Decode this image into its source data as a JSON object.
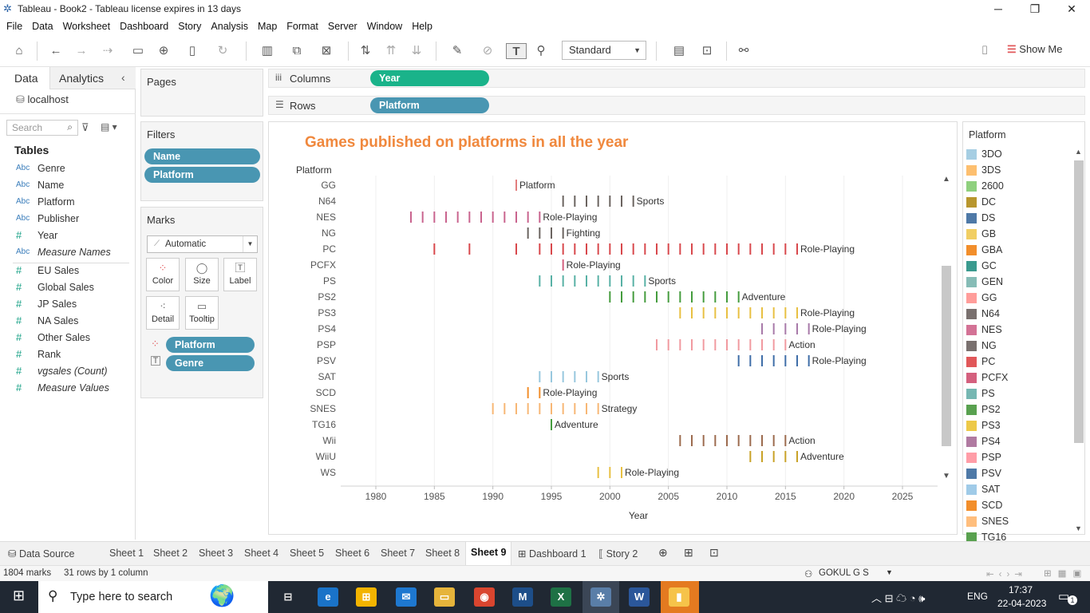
{
  "window": {
    "title": "Tableau - Book2 - Tableau license expires in 13 days",
    "minimize": "─",
    "restore": "❐",
    "close": "✕"
  },
  "menu": [
    "File",
    "Data",
    "Worksheet",
    "Dashboard",
    "Story",
    "Analysis",
    "Map",
    "Format",
    "Server",
    "Window",
    "Help"
  ],
  "toolbar": {
    "fit_select": "Standard",
    "show_me": "Show Me"
  },
  "data_pane": {
    "tab_data": "Data",
    "tab_analytics": "Analytics",
    "datasource": "localhost",
    "search_placeholder": "Search",
    "tables_header": "Tables",
    "dimensions": [
      {
        "type": "Abc",
        "name": "Genre"
      },
      {
        "type": "Abc",
        "name": "Name"
      },
      {
        "type": "Abc",
        "name": "Platform"
      },
      {
        "type": "Abc",
        "name": "Publisher"
      },
      {
        "type": "#",
        "name": "Year"
      },
      {
        "type": "Abc",
        "name": "Measure Names",
        "italic": true
      }
    ],
    "measures": [
      {
        "type": "#",
        "name": "EU Sales"
      },
      {
        "type": "#",
        "name": "Global Sales"
      },
      {
        "type": "#",
        "name": "JP Sales"
      },
      {
        "type": "#",
        "name": "NA Sales"
      },
      {
        "type": "#",
        "name": "Other Sales"
      },
      {
        "type": "#",
        "name": "Rank"
      },
      {
        "type": "#",
        "name": "vgsales (Count)",
        "italic": true
      },
      {
        "type": "#",
        "name": "Measure Values",
        "italic": true
      }
    ]
  },
  "pages": {
    "title": "Pages"
  },
  "filters": {
    "title": "Filters",
    "items": [
      "Name",
      "Platform"
    ]
  },
  "marks": {
    "title": "Marks",
    "type": "Automatic",
    "buttons": [
      "Color",
      "Size",
      "Label",
      "Detail",
      "Tooltip"
    ],
    "pills": [
      "Platform",
      "Genre"
    ]
  },
  "shelves": {
    "columns_label": "Columns",
    "columns_pill": "Year",
    "rows_label": "Rows",
    "rows_pill": "Platform"
  },
  "chart_data": {
    "type": "scatter",
    "title": "Games published on platforms in all the year",
    "xlabel": "Year",
    "ylabel": "Platform",
    "xlim": [
      1977,
      2028
    ],
    "x_ticks": [
      1980,
      1985,
      1990,
      1995,
      2000,
      2005,
      2010,
      2015,
      2020,
      2025
    ],
    "series": [
      {
        "name": "GG",
        "years": [
          1992
        ],
        "label": "Platform",
        "color": "#e27e7e"
      },
      {
        "name": "N64",
        "years": [
          1996,
          1997,
          1998,
          1999,
          2000,
          2001,
          2002
        ],
        "label": "Sports",
        "color": "#6b6460"
      },
      {
        "name": "NES",
        "years": [
          1983,
          1984,
          1985,
          1986,
          1987,
          1988,
          1989,
          1990,
          1991,
          1992,
          1993,
          1994
        ],
        "label": "Role-Playing",
        "color": "#c9648e"
      },
      {
        "name": "NG",
        "years": [
          1993,
          1994,
          1995,
          1996
        ],
        "label": "Fighting",
        "color": "#6b6460"
      },
      {
        "name": "PC",
        "years": [
          1985,
          1988,
          1992,
          1994,
          1995,
          1996,
          1997,
          1998,
          1999,
          2000,
          2001,
          2002,
          2003,
          2004,
          2005,
          2006,
          2007,
          2008,
          2009,
          2010,
          2011,
          2012,
          2013,
          2014,
          2015,
          2016
        ],
        "label": "Role-Playing",
        "color": "#d8484c"
      },
      {
        "name": "PCFX",
        "years": [
          1996
        ],
        "label": "Role-Playing",
        "color": "#d4607e"
      },
      {
        "name": "PS",
        "years": [
          1994,
          1995,
          1996,
          1997,
          1998,
          1999,
          2000,
          2001,
          2002,
          2003
        ],
        "label": "Sports",
        "color": "#58b1a5"
      },
      {
        "name": "PS2",
        "years": [
          2000,
          2001,
          2002,
          2003,
          2004,
          2005,
          2006,
          2007,
          2008,
          2009,
          2010,
          2011
        ],
        "label": "Adventure",
        "color": "#459c3e"
      },
      {
        "name": "PS3",
        "years": [
          2006,
          2007,
          2008,
          2009,
          2010,
          2011,
          2012,
          2013,
          2014,
          2015,
          2016
        ],
        "label": "Role-Playing",
        "color": "#e8c042"
      },
      {
        "name": "PS4",
        "years": [
          2013,
          2014,
          2015,
          2016,
          2017
        ],
        "label": "Role-Playing",
        "color": "#a87aa9"
      },
      {
        "name": "PSP",
        "years": [
          2004,
          2005,
          2006,
          2007,
          2008,
          2009,
          2010,
          2011,
          2012,
          2013,
          2014,
          2015
        ],
        "label": "Action",
        "color": "#f19aa0"
      },
      {
        "name": "PSV",
        "years": [
          2011,
          2012,
          2013,
          2014,
          2015,
          2016,
          2017
        ],
        "label": "Role-Playing",
        "color": "#3f6ea8"
      },
      {
        "name": "SAT",
        "years": [
          1994,
          1995,
          1996,
          1997,
          1998,
          1999
        ],
        "label": "Sports",
        "color": "#98c8de"
      },
      {
        "name": "SCD",
        "years": [
          1993,
          1994
        ],
        "label": "Role-Playing",
        "color": "#f28e2b"
      },
      {
        "name": "SNES",
        "years": [
          1990,
          1991,
          1992,
          1993,
          1994,
          1995,
          1996,
          1997,
          1998,
          1999
        ],
        "label": "Strategy",
        "color": "#f7b775"
      },
      {
        "name": "TG16",
        "years": [
          1995
        ],
        "label": "Adventure",
        "color": "#459c3e"
      },
      {
        "name": "Wii",
        "years": [
          2006,
          2007,
          2008,
          2009,
          2010,
          2011,
          2012,
          2013,
          2014,
          2015
        ],
        "label": "Action",
        "color": "#9c6b4e"
      },
      {
        "name": "WiiU",
        "years": [
          2012,
          2013,
          2014,
          2015,
          2016
        ],
        "label": "Adventure",
        "color": "#c9a227"
      },
      {
        "name": "WS",
        "years": [
          1999,
          2000,
          2001
        ],
        "label": "Role-Playing",
        "color": "#e8c042"
      }
    ]
  },
  "legend": {
    "title": "Platform",
    "items": [
      {
        "name": "3DO",
        "color": "#a6cee3"
      },
      {
        "name": "3DS",
        "color": "#fdbf6f"
      },
      {
        "name": "2600",
        "color": "#8fd07e"
      },
      {
        "name": "DC",
        "color": "#b8962e"
      },
      {
        "name": "DS",
        "color": "#4e79a7"
      },
      {
        "name": "GB",
        "color": "#f1ce63"
      },
      {
        "name": "GBA",
        "color": "#f28e2b"
      },
      {
        "name": "GC",
        "color": "#3a9a8e"
      },
      {
        "name": "GEN",
        "color": "#86bcb6"
      },
      {
        "name": "GG",
        "color": "#ff9d9a"
      },
      {
        "name": "N64",
        "color": "#79706e"
      },
      {
        "name": "NES",
        "color": "#d37295"
      },
      {
        "name": "NG",
        "color": "#79706e"
      },
      {
        "name": "PC",
        "color": "#e15759"
      },
      {
        "name": "PCFX",
        "color": "#d4607e"
      },
      {
        "name": "PS",
        "color": "#76b7b2"
      },
      {
        "name": "PS2",
        "color": "#59a14f"
      },
      {
        "name": "PS3",
        "color": "#edc948"
      },
      {
        "name": "PS4",
        "color": "#b07aa1"
      },
      {
        "name": "PSP",
        "color": "#ff9da7"
      },
      {
        "name": "PSV",
        "color": "#4e79a7"
      },
      {
        "name": "SAT",
        "color": "#a0cbe8"
      },
      {
        "name": "SCD",
        "color": "#f28e2b"
      },
      {
        "name": "SNES",
        "color": "#ffbe7d"
      },
      {
        "name": "TG16",
        "color": "#59a14f"
      }
    ]
  },
  "sheet_tabs": {
    "datasource": "Data Source",
    "sheets": [
      "Sheet 1",
      "Sheet 2",
      "Sheet 3",
      "Sheet 4",
      "Sheet 5",
      "Sheet 6",
      "Sheet 7",
      "Sheet 8",
      "Sheet 9"
    ],
    "active": "Sheet 9",
    "dashboard": "Dashboard 1",
    "story": "Story 2"
  },
  "status": {
    "marks": "1804 marks",
    "dims": "31 rows by 1 column",
    "user": "GOKUL G S"
  },
  "taskbar": {
    "search_placeholder": "Type here to search",
    "lang": "ENG",
    "time": "17:37",
    "date": "22-04-2023",
    "notifications": "1"
  }
}
